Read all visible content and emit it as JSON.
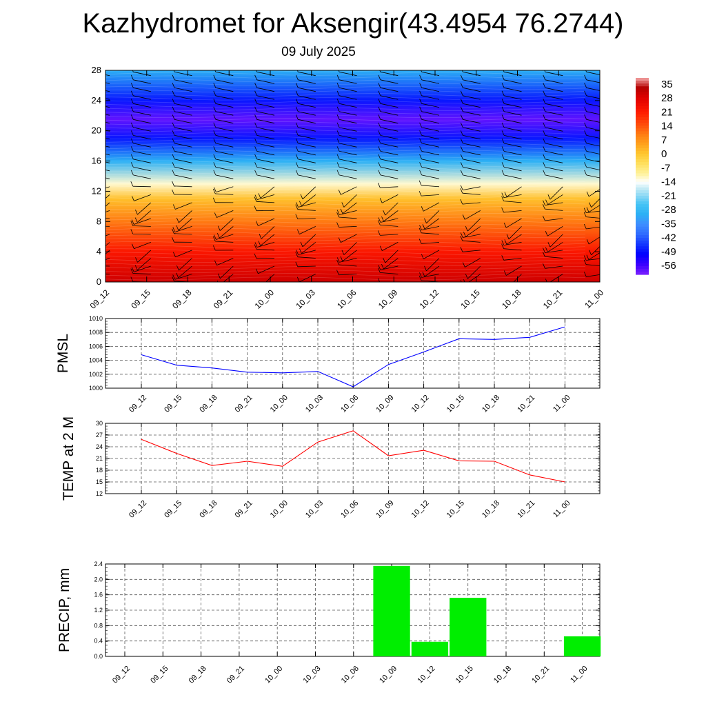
{
  "header": {
    "title": "Kazhydromet for Aksengir(43.4954 76.2744)",
    "subtitle": "09 July 2025"
  },
  "colors": {
    "pmsl_line": "#0000ff",
    "temp_line": "#ff0000",
    "precip_bar": "#00ee00",
    "grid": "#555555"
  },
  "chart_data": [
    {
      "type": "heatmap",
      "title": "",
      "xlabel": "",
      "ylabel": "",
      "x": [
        "09_12",
        "09_15",
        "09_18",
        "09_21",
        "10_00",
        "10_03",
        "10_06",
        "10_09",
        "10_12",
        "10_15",
        "10_18",
        "10_21",
        "11_00"
      ],
      "y_ticks": [
        0,
        4,
        8,
        12,
        16,
        20,
        24,
        28
      ],
      "ylim": [
        0,
        28
      ],
      "temperature_by_level": [
        {
          "level": 0,
          "value": 30
        },
        {
          "level": 4,
          "value": 22
        },
        {
          "level": 8,
          "value": 10
        },
        {
          "level": 11,
          "value": 1
        },
        {
          "level": 13,
          "value": -12
        },
        {
          "level": 16,
          "value": -30
        },
        {
          "level": 19,
          "value": -48
        },
        {
          "level": 21.5,
          "value": -58
        },
        {
          "level": 24,
          "value": -48
        },
        {
          "level": 28,
          "value": -30
        }
      ],
      "colorbar": {
        "labels": [
          "35",
          "28",
          "21",
          "14",
          "7",
          "0",
          "-7",
          "-14",
          "-21",
          "-28",
          "-35",
          "-42",
          "-49",
          "-56"
        ],
        "range": [
          -60,
          38
        ]
      },
      "overlay": "wind barbs"
    },
    {
      "type": "line",
      "ylabel": "PMSL",
      "x": [
        "09_12",
        "09_15",
        "09_18",
        "09_21",
        "10_00",
        "10_03",
        "10_06",
        "10_09",
        "10_12",
        "10_15",
        "10_18",
        "10_21",
        "11_00"
      ],
      "series": [
        {
          "values": [
            1004.8,
            1003.3,
            1002.9,
            1002.3,
            1002.2,
            1002.4,
            1000.2,
            1003.4,
            1005.2,
            1007.1,
            1007.0,
            1007.3,
            1008.8
          ]
        }
      ],
      "ylim": [
        1000,
        1010
      ],
      "y_ticks": [
        "1000",
        "1002",
        "1004",
        "1006",
        "1008",
        "1010"
      ],
      "grid": true
    },
    {
      "type": "line",
      "ylabel": "TEMP at 2 M",
      "x": [
        "09_12",
        "09_15",
        "09_18",
        "09_21",
        "10_00",
        "10_03",
        "10_06",
        "10_09",
        "10_12",
        "10_15",
        "10_18",
        "10_21",
        "11_00"
      ],
      "series": [
        {
          "values": [
            25.9,
            22.3,
            19.2,
            20.3,
            19.0,
            25.2,
            28.1,
            21.7,
            23.1,
            20.4,
            20.3,
            16.8,
            15.0
          ]
        }
      ],
      "ylim": [
        12,
        30
      ],
      "y_ticks": [
        "12",
        "15",
        "18",
        "21",
        "24",
        "27",
        "30"
      ],
      "grid": true
    },
    {
      "type": "bar",
      "ylabel": "PRECIP, mm",
      "categories": [
        "09_12",
        "09_15",
        "09_18",
        "09_21",
        "10_00",
        "10_03",
        "10_06",
        "10_09",
        "10_12",
        "10_15",
        "10_18",
        "10_21",
        "11_00"
      ],
      "values": [
        0,
        0,
        0,
        0,
        0,
        0,
        0,
        2.35,
        0.38,
        1.52,
        0,
        0,
        0.52
      ],
      "ylim": [
        0,
        2.4
      ],
      "y_ticks": [
        "0.0",
        "0.4",
        "0.8",
        "1.2",
        "1.6",
        "2.0",
        "2.4"
      ],
      "grid": true
    }
  ]
}
